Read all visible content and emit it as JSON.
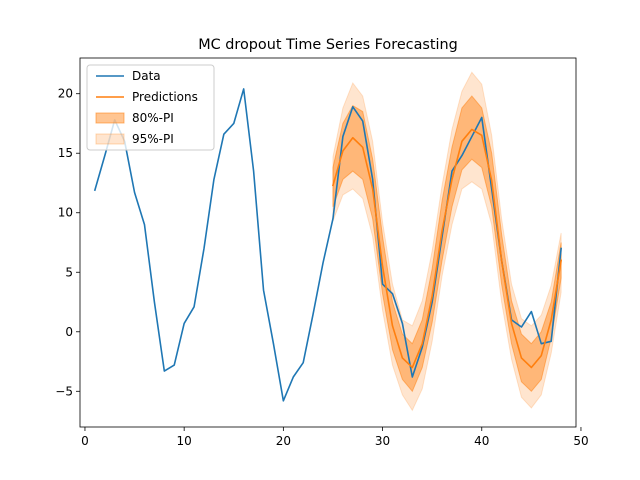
{
  "chart_data": {
    "type": "line",
    "title": "MC dropout Time Series Forecasting",
    "xlabel": "",
    "ylabel": "",
    "xlim": [
      -0.5,
      49.5
    ],
    "ylim": [
      -8,
      23
    ],
    "xticks": [
      0,
      10,
      20,
      30,
      40,
      50
    ],
    "yticks": [
      -5,
      0,
      5,
      10,
      15,
      20
    ],
    "grid": false,
    "legend_position": "top-left",
    "series": [
      {
        "name": "Data",
        "color": "#1f77b4",
        "x": [
          1,
          2,
          3,
          4,
          5,
          6,
          7,
          8,
          9,
          10,
          11,
          12,
          13,
          14,
          15,
          16,
          17,
          18,
          19,
          20,
          21,
          22,
          23,
          24,
          25,
          26,
          27,
          28,
          29,
          30,
          31,
          32,
          33,
          34,
          35,
          36,
          37,
          38,
          39,
          40,
          41,
          42,
          43,
          44,
          45,
          46,
          47,
          48
        ],
        "y": [
          11.9,
          14.8,
          17.8,
          16.0,
          11.7,
          9.0,
          2.5,
          -3.3,
          -2.8,
          0.7,
          2.1,
          7.0,
          12.8,
          16.6,
          17.5,
          20.4,
          13.5,
          3.5,
          -1.0,
          -5.8,
          -3.8,
          -2.6,
          1.5,
          5.8,
          9.5,
          16.4,
          18.9,
          17.7,
          12.8,
          4.0,
          3.2,
          0.7,
          -3.8,
          -1.3,
          2.5,
          8.0,
          13.5,
          14.8,
          16.4,
          18.0,
          12.0,
          6.0,
          1.0,
          0.4,
          1.7,
          -1.0,
          -0.8,
          7.0
        ]
      },
      {
        "name": "Predictions",
        "color": "#ff7f0e",
        "x": [
          25,
          26,
          27,
          28,
          29,
          30,
          31,
          32,
          33,
          34,
          35,
          36,
          37,
          38,
          39,
          40,
          41,
          42,
          43,
          44,
          45,
          46,
          47,
          48
        ],
        "y": [
          12.3,
          15.2,
          16.3,
          15.5,
          12.0,
          5.5,
          0.5,
          -2.2,
          -3.0,
          -1.0,
          3.0,
          8.5,
          12.8,
          16.0,
          17.0,
          16.5,
          12.7,
          6.0,
          0.7,
          -2.2,
          -3.0,
          -2.0,
          1.0,
          6.0
        ]
      }
    ],
    "bands": [
      {
        "name": "80%-PI",
        "color": "#ff7f0e",
        "x": [
          25,
          26,
          27,
          28,
          29,
          30,
          31,
          32,
          33,
          34,
          35,
          36,
          37,
          38,
          39,
          40,
          41,
          42,
          43,
          44,
          45,
          46,
          47,
          48
        ],
        "lower": [
          10.5,
          12.8,
          13.5,
          12.8,
          9.5,
          3.2,
          -1.5,
          -4.0,
          -5.0,
          -3.0,
          0.8,
          6.0,
          10.5,
          13.6,
          14.5,
          13.8,
          10.5,
          4.0,
          -1.0,
          -4.2,
          -5.0,
          -4.0,
          -0.5,
          4.5
        ],
        "upper": [
          13.8,
          17.5,
          19.0,
          18.5,
          14.5,
          8.0,
          2.5,
          -0.2,
          -1.0,
          1.0,
          5.3,
          11.0,
          15.5,
          18.8,
          19.8,
          18.8,
          15.0,
          8.2,
          2.6,
          -0.2,
          -1.0,
          0.0,
          2.5,
          7.5
        ]
      },
      {
        "name": "95%-PI",
        "color": "#ff7f0e",
        "x": [
          25,
          26,
          27,
          28,
          29,
          30,
          31,
          32,
          33,
          34,
          35,
          36,
          37,
          38,
          39,
          40,
          41,
          42,
          43,
          44,
          45,
          46,
          47,
          48
        ],
        "lower": [
          9.3,
          11.5,
          12.0,
          11.2,
          8.0,
          1.8,
          -2.8,
          -5.3,
          -6.6,
          -4.8,
          -0.8,
          4.7,
          9.0,
          12.0,
          12.6,
          12.0,
          9.0,
          2.5,
          -2.3,
          -5.5,
          -6.4,
          -5.3,
          -1.8,
          3.3
        ],
        "upper": [
          14.7,
          18.8,
          20.9,
          19.8,
          16.0,
          9.2,
          4.0,
          1.0,
          0.5,
          2.6,
          6.8,
          12.3,
          17.0,
          20.2,
          21.8,
          20.8,
          16.5,
          9.5,
          4.0,
          1.1,
          0.5,
          1.4,
          3.9,
          8.3
        ]
      }
    ]
  }
}
